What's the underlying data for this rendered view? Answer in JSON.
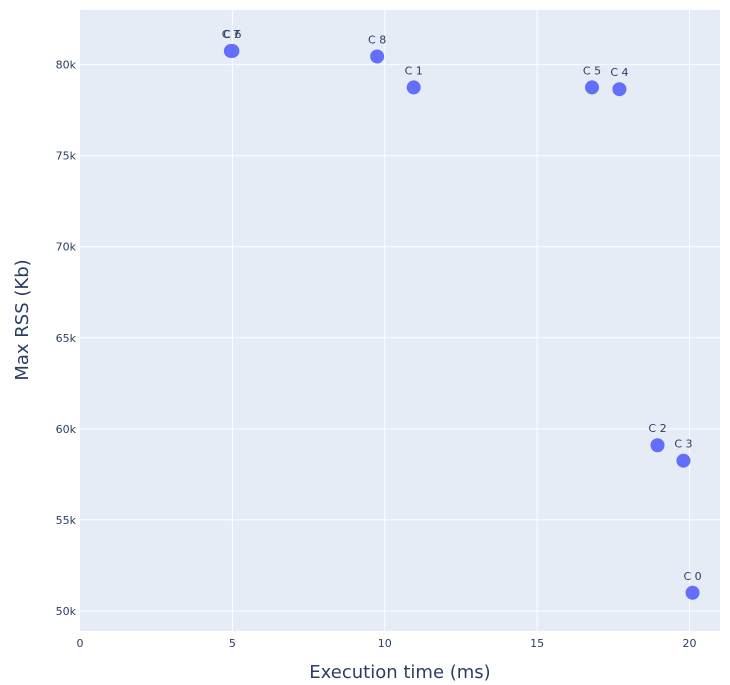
{
  "chart_data": {
    "type": "scatter",
    "title": "",
    "xlabel": "Execution time (ms)",
    "ylabel": "Max RSS (Kb)",
    "xlim": [
      0,
      21
    ],
    "ylim": [
      48900,
      83000
    ],
    "x_ticks": [
      {
        "value": 0,
        "label": "0"
      },
      {
        "value": 5,
        "label": "5"
      },
      {
        "value": 10,
        "label": "10"
      },
      {
        "value": 15,
        "label": "15"
      },
      {
        "value": 20,
        "label": "20"
      }
    ],
    "y_ticks": [
      {
        "value": 50000,
        "label": "50k"
      },
      {
        "value": 55000,
        "label": "55k"
      },
      {
        "value": 60000,
        "label": "60k"
      },
      {
        "value": 65000,
        "label": "65k"
      },
      {
        "value": 70000,
        "label": "70k"
      },
      {
        "value": 75000,
        "label": "75k"
      },
      {
        "value": 80000,
        "label": "80k"
      }
    ],
    "grid": true,
    "points": [
      {
        "label": "C 0",
        "x": 20.1,
        "y": 51000
      },
      {
        "label": "C 1",
        "x": 10.95,
        "y": 78750
      },
      {
        "label": "C 2",
        "x": 18.95,
        "y": 59100
      },
      {
        "label": "C 3",
        "x": 19.8,
        "y": 58250
      },
      {
        "label": "C 4",
        "x": 17.7,
        "y": 78650
      },
      {
        "label": "C 5",
        "x": 16.8,
        "y": 78750
      },
      {
        "label": "C 6",
        "x": 5.0,
        "y": 80750
      },
      {
        "label": "C 7",
        "x": 4.95,
        "y": 80750
      },
      {
        "label": "C 8",
        "x": 9.75,
        "y": 80450
      }
    ],
    "colors": {
      "plot_background": "#e5ecf6",
      "marker": "#636efa",
      "text": "#2a3f5f",
      "grid": "#ffffff"
    }
  }
}
